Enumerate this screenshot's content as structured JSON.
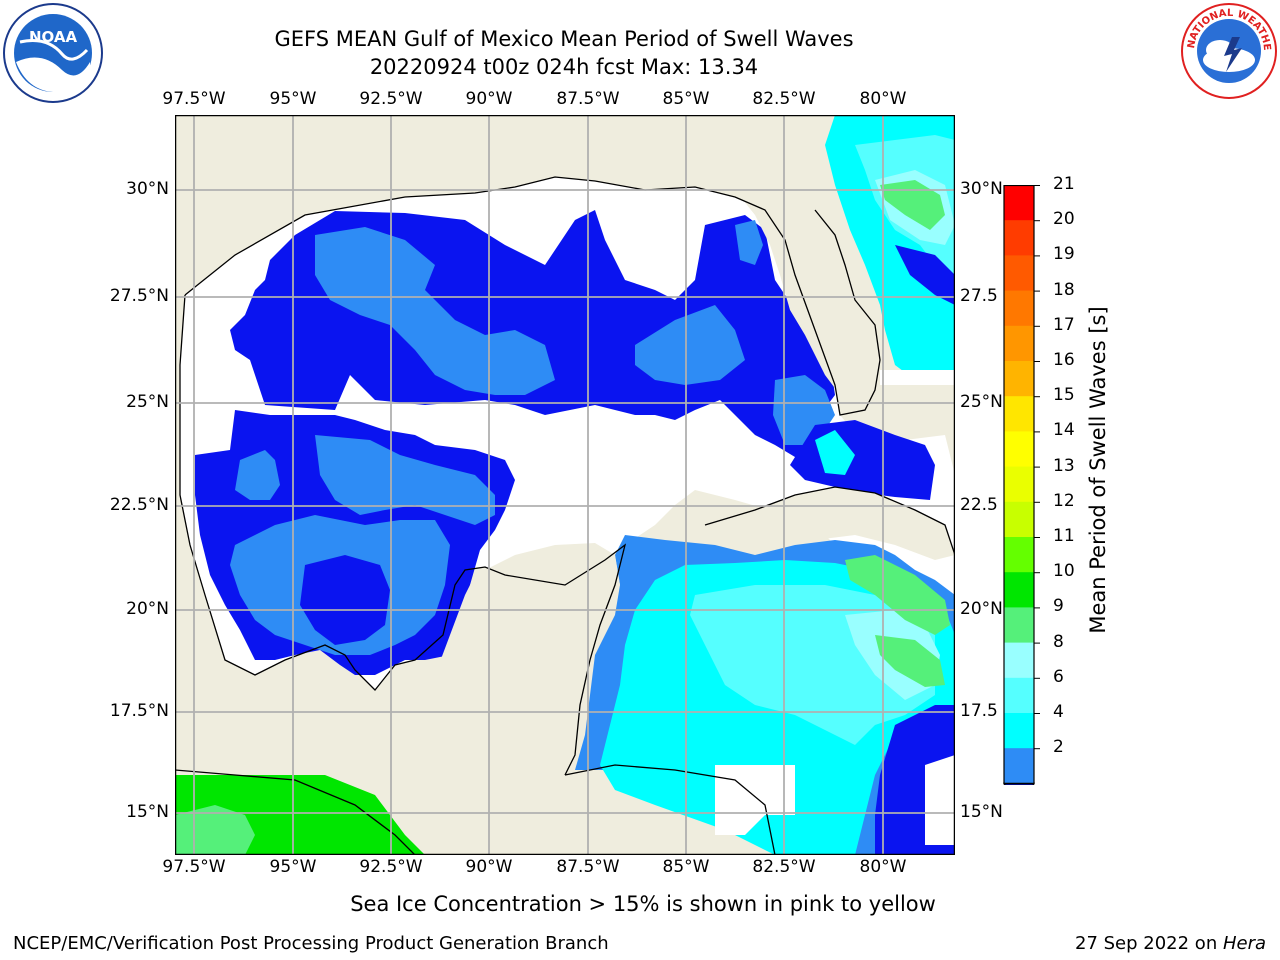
{
  "header": {
    "title_line1": "GEFS MEAN Gulf of Mexico Mean Period of Swell Waves",
    "title_line2": "20220924 t00z 024h fcst   Max: 13.34"
  },
  "logos": {
    "left": "noaa-logo",
    "right": "national-weather-service-logo",
    "left_text": "NOAA",
    "right_text": "NATIONAL WEATHER SERVICE"
  },
  "map": {
    "lon_labels": [
      "97.5°W",
      "95°W",
      "92.5°W",
      "90°W",
      "87.5°W",
      "85°W",
      "82.5°W",
      "80°W"
    ],
    "lat_labels_left": [
      "30°N",
      "27.5°N",
      "25°N",
      "22.5°N",
      "20°N",
      "17.5°N",
      "15°N"
    ],
    "lat_labels_right": [
      "30°N",
      "27.5",
      "25°N",
      "22.5",
      "20°N",
      "17.5",
      "15°N"
    ],
    "colors": {
      "land": "#efedde",
      "c2": "#0a14f0",
      "c4": "#2e8cf5",
      "c6": "#00ffff",
      "c8": "#55ffff",
      "c9": "#99ffff",
      "c10": "#55f07a",
      "c11": "#00e600",
      "grid": "#b0b0b0"
    }
  },
  "colorbar": {
    "label": "Mean Period of Swell Waves [s]",
    "ticks": [
      "21",
      "20",
      "19",
      "18",
      "17",
      "16",
      "15",
      "14",
      "13",
      "12",
      "11",
      "10",
      "9",
      "8",
      "6",
      "4",
      "2"
    ],
    "colors": [
      "#ff0000",
      "#ff3c00",
      "#ff5a00",
      "#ff7800",
      "#ff9600",
      "#ffb400",
      "#ffe600",
      "#ffff00",
      "#eaff00",
      "#c8ff00",
      "#64ff00",
      "#00e600",
      "#55f07a",
      "#99ffff",
      "#55ffff",
      "#00ffff",
      "#2e8cf5"
    ],
    "extend_color": "#0a14f0"
  },
  "footer": {
    "note": "Sea Ice Concentration > 15% is shown in pink to yellow",
    "credit": "NCEP/EMC/Verification Post Processing Product Generation Branch",
    "date": "27 Sep 2022 on ",
    "machine": "Hera"
  }
}
